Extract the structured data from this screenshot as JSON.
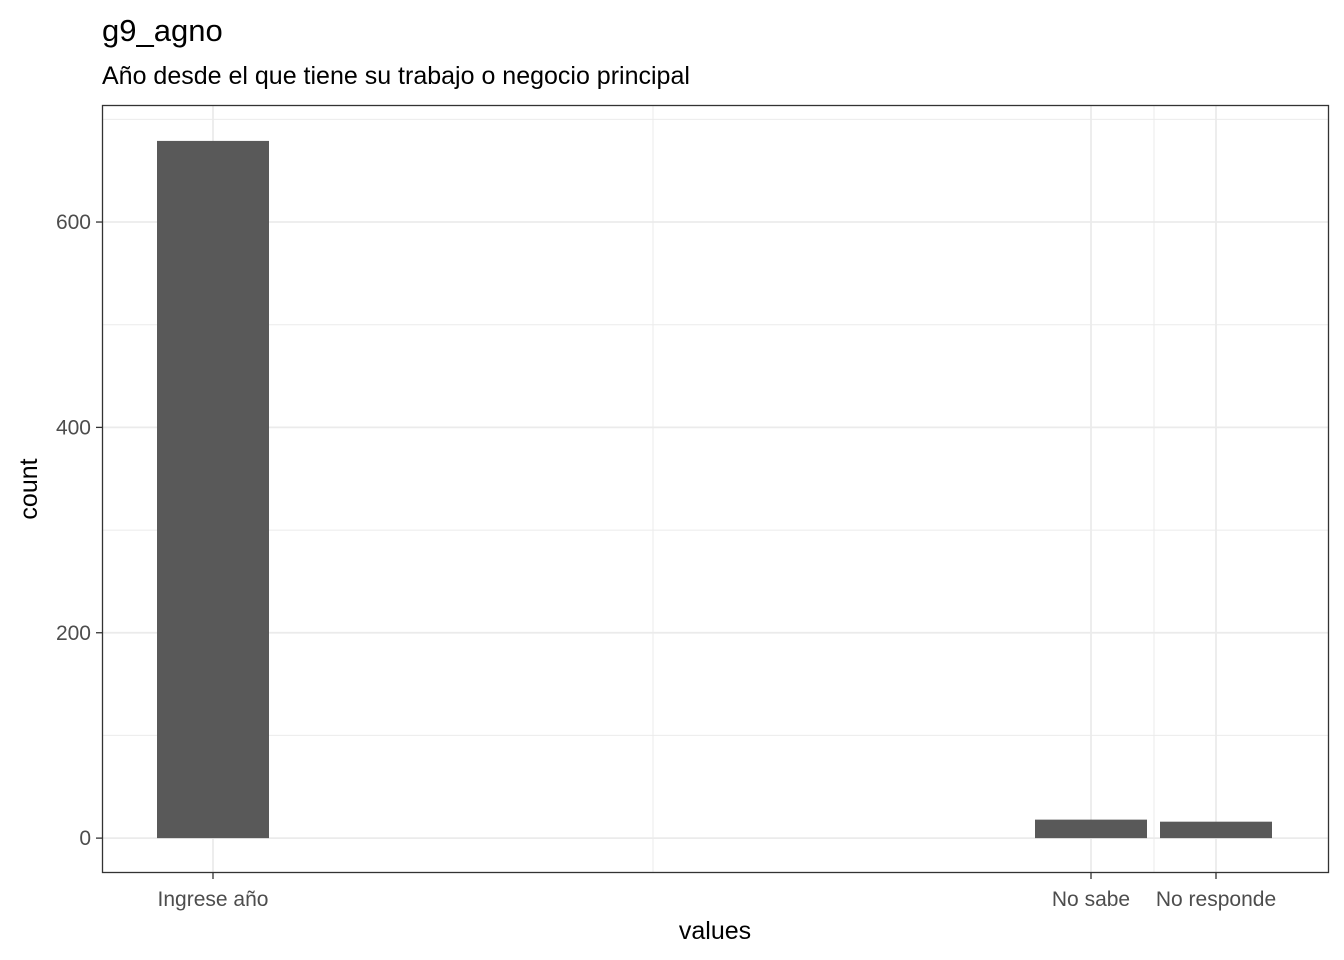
{
  "chart_data": {
    "type": "bar",
    "title": "g9_agno",
    "subtitle": "Año desde el que tiene su trabajo o negocio principal",
    "xlabel": "values",
    "ylabel": "count",
    "x_tick_labels": [
      "Ingrese año",
      "No sabe",
      "No responde"
    ],
    "categories": [
      "Ingrese año",
      "No sabe",
      "No responde"
    ],
    "values": [
      679,
      18,
      16
    ],
    "ylim": [
      -33,
      713
    ],
    "y_ticks": [
      0,
      200,
      400,
      600
    ],
    "y_tick_labels": [
      "0",
      "200",
      "400",
      "600"
    ],
    "grid": true,
    "bar_color": "#595959",
    "grid_color": "#ebebeb",
    "panel_border_color": "#333333",
    "legend": "none"
  }
}
